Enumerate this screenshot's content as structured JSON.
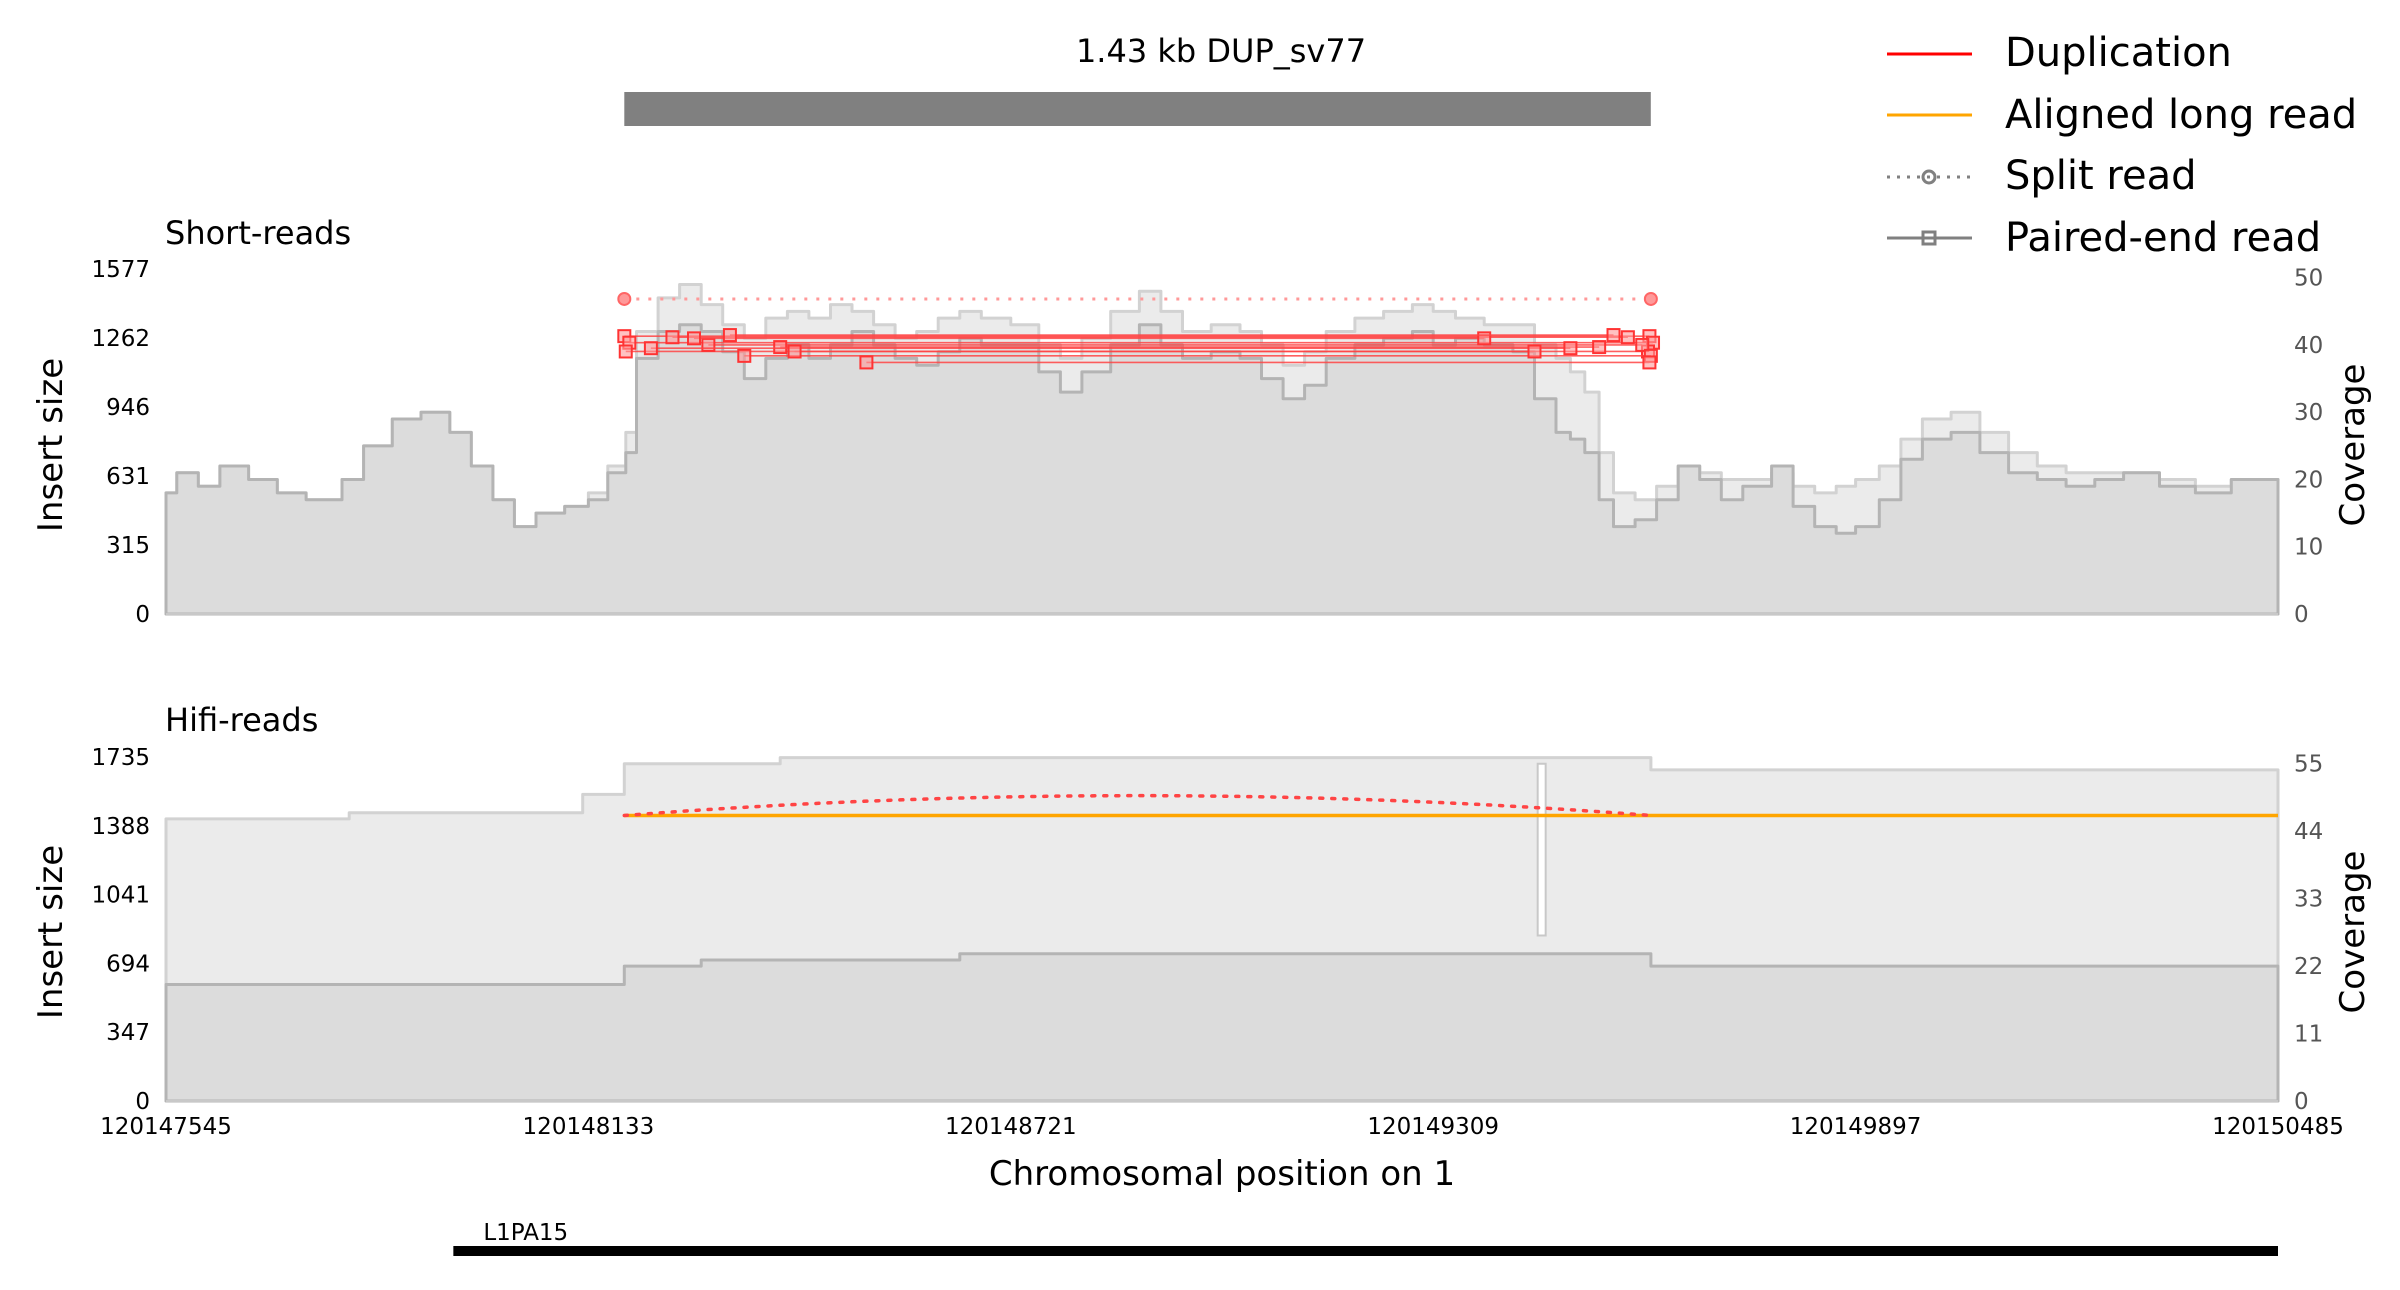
{
  "chart_data": [
    {
      "type": "line",
      "panel": "header",
      "title": "1.43 kb DUP_sv77",
      "region": {
        "start": 120148183,
        "end": 120149612
      },
      "legend": {
        "placement": "top-right",
        "entries": [
          {
            "label": "Duplication",
            "style": "solid",
            "color": "#ff0000"
          },
          {
            "label": "Aligned long read",
            "style": "solid",
            "color": "#ffa500"
          },
          {
            "label": "Split read",
            "style": "dotted-circle",
            "color": "#808080"
          },
          {
            "label": "Paired-end read",
            "style": "solid-square",
            "color": "#808080"
          }
        ]
      }
    },
    {
      "type": "area",
      "panel": "short",
      "title": "Short-reads",
      "ylabel": "Insert size",
      "y2label": "Coverage",
      "ylim": [
        0,
        1577
      ],
      "y2lim": [
        0,
        51.3
      ],
      "yticks": [
        "0",
        "315",
        "631",
        "946",
        "1262",
        "1577"
      ],
      "y2ticks": [
        "0",
        "10",
        "20",
        "30",
        "40",
        "50"
      ],
      "coverage_dark": [
        [
          120147545,
          18
        ],
        [
          120147560,
          21
        ],
        [
          120147590,
          19
        ],
        [
          120147620,
          22
        ],
        [
          120147660,
          20
        ],
        [
          120147700,
          18
        ],
        [
          120147740,
          17
        ],
        [
          120147790,
          20
        ],
        [
          120147820,
          25
        ],
        [
          120147860,
          29
        ],
        [
          120147900,
          30
        ],
        [
          120147940,
          27
        ],
        [
          120147970,
          22
        ],
        [
          120148000,
          17
        ],
        [
          120148030,
          13
        ],
        [
          120148060,
          15
        ],
        [
          120148100,
          16
        ],
        [
          120148133,
          17
        ],
        [
          120148160,
          21
        ],
        [
          120148185,
          24
        ],
        [
          120148200,
          38
        ],
        [
          120148230,
          42
        ],
        [
          120148260,
          43
        ],
        [
          120148290,
          42
        ],
        [
          120148320,
          39
        ],
        [
          120148350,
          35
        ],
        [
          120148380,
          38
        ],
        [
          120148410,
          40
        ],
        [
          120148440,
          38
        ],
        [
          120148470,
          40
        ],
        [
          120148500,
          42
        ],
        [
          120148530,
          40
        ],
        [
          120148560,
          38
        ],
        [
          120148590,
          37
        ],
        [
          120148620,
          39
        ],
        [
          120148650,
          41
        ],
        [
          120148680,
          40
        ],
        [
          120148721,
          40
        ],
        [
          120148760,
          36
        ],
        [
          120148790,
          33
        ],
        [
          120148820,
          36
        ],
        [
          120148860,
          40
        ],
        [
          120148900,
          43
        ],
        [
          120148930,
          40
        ],
        [
          120148960,
          38
        ],
        [
          120149000,
          39
        ],
        [
          120149040,
          38
        ],
        [
          120149070,
          35
        ],
        [
          120149100,
          32
        ],
        [
          120149130,
          34
        ],
        [
          120149160,
          38
        ],
        [
          120149200,
          40
        ],
        [
          120149240,
          41
        ],
        [
          120149280,
          42
        ],
        [
          120149309,
          40
        ],
        [
          120149340,
          41
        ],
        [
          120149380,
          40
        ],
        [
          120149420,
          39
        ],
        [
          120149450,
          32
        ],
        [
          120149480,
          27
        ],
        [
          120149500,
          26
        ],
        [
          120149520,
          24
        ],
        [
          120149540,
          17
        ],
        [
          120149560,
          13
        ],
        [
          120149590,
          14
        ],
        [
          120149620,
          17
        ],
        [
          120149650,
          22
        ],
        [
          120149680,
          20
        ],
        [
          120149710,
          17
        ],
        [
          120149740,
          19
        ],
        [
          120149780,
          22
        ],
        [
          120149810,
          16
        ],
        [
          120149840,
          13
        ],
        [
          120149870,
          12
        ],
        [
          120149897,
          13
        ],
        [
          120149930,
          17
        ],
        [
          120149960,
          23
        ],
        [
          120149990,
          26
        ],
        [
          120150030,
          27
        ],
        [
          120150070,
          24
        ],
        [
          120150110,
          21
        ],
        [
          120150150,
          20
        ],
        [
          120150190,
          19
        ],
        [
          120150230,
          20
        ],
        [
          120150270,
          21
        ],
        [
          120150320,
          19
        ],
        [
          120150370,
          18
        ],
        [
          120150420,
          20
        ],
        [
          120150485,
          20
        ]
      ],
      "coverage_light": [
        [
          120147545,
          18
        ],
        [
          120147560,
          21
        ],
        [
          120147590,
          19
        ],
        [
          120147620,
          22
        ],
        [
          120147660,
          20
        ],
        [
          120147700,
          18
        ],
        [
          120147740,
          17
        ],
        [
          120147790,
          20
        ],
        [
          120147820,
          25
        ],
        [
          120147860,
          29
        ],
        [
          120147900,
          30
        ],
        [
          120147940,
          27
        ],
        [
          120147970,
          22
        ],
        [
          120148000,
          17
        ],
        [
          120148030,
          13
        ],
        [
          120148060,
          15
        ],
        [
          120148100,
          16
        ],
        [
          120148133,
          18
        ],
        [
          120148160,
          22
        ],
        [
          120148185,
          27
        ],
        [
          120148200,
          42
        ],
        [
          120148230,
          47
        ],
        [
          120148260,
          49
        ],
        [
          120148290,
          46
        ],
        [
          120148320,
          43
        ],
        [
          120148350,
          41
        ],
        [
          120148380,
          44
        ],
        [
          120148410,
          45
        ],
        [
          120148440,
          44
        ],
        [
          120148470,
          46
        ],
        [
          120148500,
          45
        ],
        [
          120148530,
          43
        ],
        [
          120148560,
          41
        ],
        [
          120148590,
          42
        ],
        [
          120148620,
          44
        ],
        [
          120148650,
          45
        ],
        [
          120148680,
          44
        ],
        [
          120148721,
          43
        ],
        [
          120148760,
          40
        ],
        [
          120148790,
          38
        ],
        [
          120148820,
          41
        ],
        [
          120148860,
          45
        ],
        [
          120148900,
          48
        ],
        [
          120148930,
          45
        ],
        [
          120148960,
          42
        ],
        [
          120149000,
          43
        ],
        [
          120149040,
          42
        ],
        [
          120149070,
          40
        ],
        [
          120149100,
          37
        ],
        [
          120149130,
          39
        ],
        [
          120149160,
          42
        ],
        [
          120149200,
          44
        ],
        [
          120149240,
          45
        ],
        [
          120149280,
          46
        ],
        [
          120149309,
          45
        ],
        [
          120149340,
          44
        ],
        [
          120149380,
          43
        ],
        [
          120149420,
          43
        ],
        [
          120149450,
          40
        ],
        [
          120149480,
          38
        ],
        [
          120149500,
          36
        ],
        [
          120149520,
          33
        ],
        [
          120149540,
          24
        ],
        [
          120149560,
          18
        ],
        [
          120149590,
          17
        ],
        [
          120149620,
          19
        ],
        [
          120149650,
          22
        ],
        [
          120149680,
          21
        ],
        [
          120149710,
          20
        ],
        [
          120149740,
          20
        ],
        [
          120149780,
          21
        ],
        [
          120149810,
          19
        ],
        [
          120149840,
          18
        ],
        [
          120149870,
          19
        ],
        [
          120149897,
          20
        ],
        [
          120149930,
          22
        ],
        [
          120149960,
          26
        ],
        [
          120149990,
          29
        ],
        [
          120150030,
          30
        ],
        [
          120150070,
          27
        ],
        [
          120150110,
          24
        ],
        [
          120150150,
          22
        ],
        [
          120150190,
          21
        ],
        [
          120150230,
          21
        ],
        [
          120150270,
          21
        ],
        [
          120150320,
          20
        ],
        [
          120150370,
          19
        ],
        [
          120150420,
          20
        ],
        [
          120150485,
          20
        ]
      ],
      "split_reads": [
        {
          "start": 120148183,
          "end": 120149612,
          "insert_size": 1440
        }
      ],
      "paired_end_reads": [
        {
          "start": 120148183,
          "end": 120149610,
          "insert_size": 1270
        },
        {
          "start": 120148190,
          "end": 120149615,
          "insert_size": 1240
        },
        {
          "start": 120148185,
          "end": 120149608,
          "insert_size": 1200
        },
        {
          "start": 120148250,
          "end": 120149580,
          "insert_size": 1265
        },
        {
          "start": 120148300,
          "end": 120149600,
          "insert_size": 1230
        },
        {
          "start": 120148350,
          "end": 120149612,
          "insert_size": 1180
        },
        {
          "start": 120148400,
          "end": 120149540,
          "insert_size": 1220
        },
        {
          "start": 120148220,
          "end": 120149500,
          "insert_size": 1215
        },
        {
          "start": 120148420,
          "end": 120149450,
          "insert_size": 1200
        },
        {
          "start": 120148520,
          "end": 120149610,
          "insert_size": 1150
        },
        {
          "start": 120148280,
          "end": 120149380,
          "insert_size": 1260
        },
        {
          "start": 120148330,
          "end": 120149560,
          "insert_size": 1275
        }
      ]
    },
    {
      "type": "area",
      "panel": "hifi",
      "title": "Hifi-reads",
      "xlabel": "Chromosomal position on 1",
      "ylabel": "Insert size",
      "y2label": "Coverage",
      "xlim": [
        120147545,
        120150485
      ],
      "xticks": [
        "120147545",
        "120148133",
        "120148721",
        "120149309",
        "120149897",
        "120150485"
      ],
      "ylim": [
        0,
        1735
      ],
      "y2lim": [
        0,
        56.1
      ],
      "yticks": [
        "0",
        "347",
        "694",
        "1041",
        "1388",
        "1735"
      ],
      "y2ticks": [
        "0",
        "11",
        "22",
        "33",
        "44",
        "55"
      ],
      "coverage_dark": [
        [
          120147545,
          19
        ],
        [
          120148183,
          19
        ],
        [
          120148183,
          22
        ],
        [
          120148290,
          23
        ],
        [
          120148650,
          23
        ],
        [
          120148650,
          24
        ],
        [
          120149612,
          24
        ],
        [
          120149612,
          22
        ],
        [
          120150485,
          22
        ]
      ],
      "coverage_light": [
        [
          120147545,
          46
        ],
        [
          120147800,
          47
        ],
        [
          120148125,
          47
        ],
        [
          120148125,
          50
        ],
        [
          120148183,
          50
        ],
        [
          120148183,
          55
        ],
        [
          120148400,
          56
        ],
        [
          120149612,
          56
        ],
        [
          120149612,
          54
        ],
        [
          120149950,
          54
        ],
        [
          120150485,
          54
        ]
      ],
      "coverage_dip": {
        "position": 120149460,
        "value": 27
      },
      "aligned_long_read": {
        "start": 120148183,
        "end": 120150485,
        "insert_size": 1440
      },
      "split_read": {
        "start": 120148183,
        "end": 120149612,
        "insert_size": 1440,
        "peak": 1540
      }
    },
    {
      "type": "table",
      "panel": "annotation",
      "tracks": [
        {
          "label": "L1PA15",
          "start": 120147945,
          "end": 120150485
        }
      ]
    }
  ]
}
